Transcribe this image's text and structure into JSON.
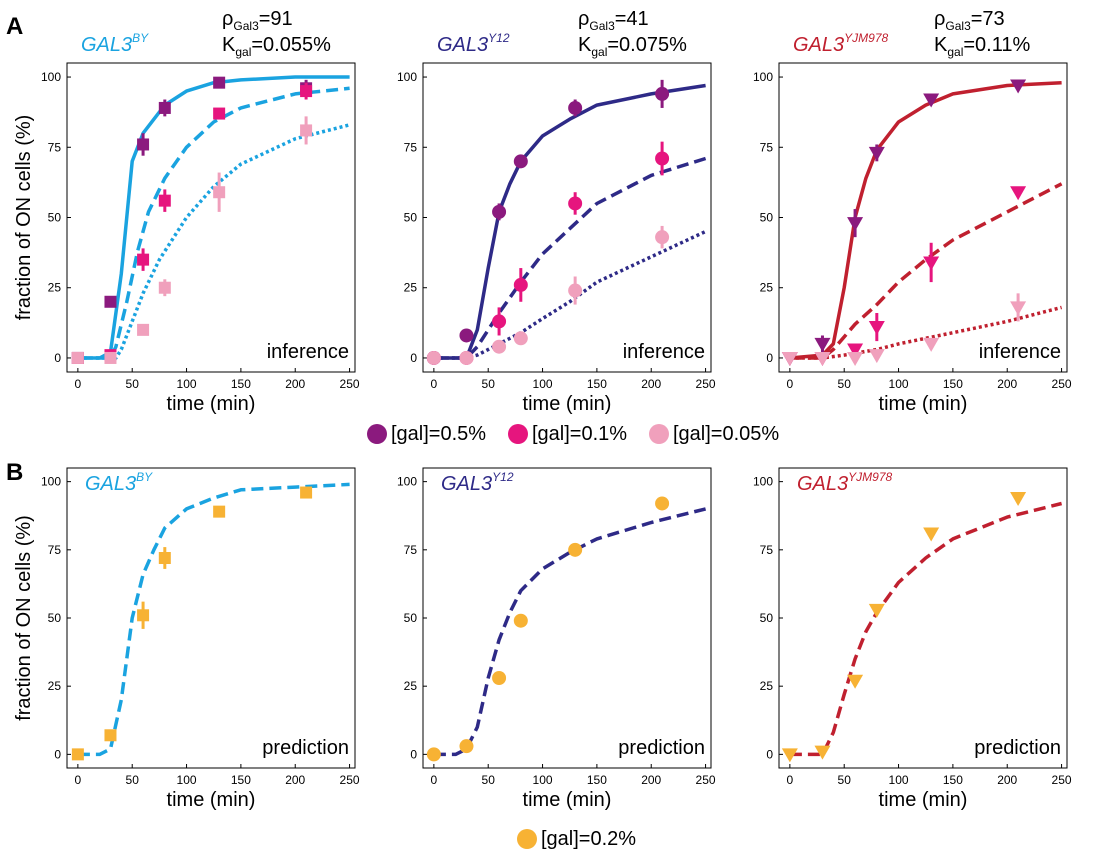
{
  "colors": {
    "by": "#1aa3e0",
    "y12": "#2e2a87",
    "yjm": "#c0202f",
    "gal05": "#8b1a7e",
    "gal01": "#e6157e",
    "gal005": "#f0a0bc",
    "gal02": "#f7b234"
  },
  "panel_a": {
    "letter": "A"
  },
  "panel_b": {
    "letter": "B"
  },
  "legend_a": [
    {
      "label": "[gal]=0.5%",
      "color_key": "gal05"
    },
    {
      "label": "[gal]=0.1%",
      "color_key": "gal01"
    },
    {
      "label": "[gal]=0.05%",
      "color_key": "gal005"
    }
  ],
  "legend_b": [
    {
      "label": "[gal]=0.2%",
      "color_key": "gal02"
    }
  ],
  "chart_data": [
    {
      "id": "a1",
      "type": "line",
      "panel": "A",
      "strain": "GAL3",
      "strain_sup": "BY",
      "color_key": "by",
      "marker": "square",
      "rho_label": "ρ",
      "rho_sub": "Gal3",
      "rho_value": "=91",
      "k_label": "K",
      "k_sub": "gal",
      "k_value": "=0.055%",
      "corner": "inference",
      "ylabel": "fraction of ON cells (%)",
      "xlabel": "time (min)",
      "xlim": [
        -10,
        255
      ],
      "ylim": [
        -5,
        105
      ],
      "xticks": [
        0,
        50,
        100,
        150,
        200,
        250
      ],
      "yticks": [
        0,
        25,
        50,
        75,
        100
      ],
      "curves": [
        {
          "name": "[gal]=0.5%",
          "style": "solid",
          "x": [
            0,
            20,
            30,
            40,
            50,
            60,
            70,
            80,
            100,
            125,
            150,
            200,
            250
          ],
          "y": [
            0,
            0,
            2,
            30,
            70,
            80,
            85,
            90,
            95,
            98,
            99,
            100,
            100
          ]
        },
        {
          "name": "[gal]=0.1%",
          "style": "dashed",
          "x": [
            0,
            30,
            35,
            45,
            55,
            65,
            80,
            100,
            125,
            150,
            200,
            250
          ],
          "y": [
            0,
            0,
            4,
            20,
            38,
            52,
            64,
            75,
            84,
            89,
            94,
            96
          ]
        },
        {
          "name": "[gal]=0.05%",
          "style": "dotted",
          "x": [
            0,
            35,
            40,
            50,
            60,
            75,
            100,
            125,
            150,
            200,
            250
          ],
          "y": [
            0,
            0,
            3,
            13,
            23,
            35,
            50,
            61,
            69,
            78,
            83
          ]
        }
      ],
      "series": [
        {
          "name": "[gal]=0.5%",
          "color_key": "gal05",
          "x": [
            0,
            30,
            60,
            80,
            130,
            210
          ],
          "y": [
            0,
            20,
            76,
            89,
            98,
            96
          ],
          "err": [
            0,
            2,
            4,
            3,
            0,
            3
          ]
        },
        {
          "name": "[gal]=0.1%",
          "color_key": "gal01",
          "x": [
            0,
            30,
            60,
            80,
            130,
            210
          ],
          "y": [
            0,
            1,
            35,
            56,
            87,
            95
          ],
          "err": [
            0,
            0,
            4,
            4,
            0,
            3
          ]
        },
        {
          "name": "[gal]=0.05%",
          "color_key": "gal005",
          "x": [
            0,
            30,
            60,
            80,
            130,
            210
          ],
          "y": [
            0,
            0,
            10,
            25,
            59,
            81
          ],
          "err": [
            0,
            0,
            2,
            3,
            7,
            5
          ]
        }
      ]
    },
    {
      "id": "a2",
      "type": "line",
      "panel": "A",
      "strain": "GAL3",
      "strain_sup": "Y12",
      "color_key": "y12",
      "marker": "circle",
      "rho_label": "ρ",
      "rho_sub": "Gal3",
      "rho_value": "=41",
      "k_label": "K",
      "k_sub": "gal",
      "k_value": "=0.075%",
      "corner": "inference",
      "ylabel": "",
      "xlabel": "time (min)",
      "xlim": [
        -10,
        255
      ],
      "ylim": [
        -5,
        105
      ],
      "xticks": [
        0,
        50,
        100,
        150,
        200,
        250
      ],
      "yticks": [
        0,
        25,
        50,
        75,
        100
      ],
      "curves": [
        {
          "name": "[gal]=0.5%",
          "style": "solid",
          "x": [
            0,
            30,
            40,
            50,
            60,
            70,
            80,
            100,
            125,
            150,
            200,
            250
          ],
          "y": [
            0,
            0,
            10,
            32,
            52,
            62,
            70,
            79,
            85,
            90,
            94,
            97
          ]
        },
        {
          "name": "[gal]=0.1%",
          "style": "dashed",
          "x": [
            0,
            30,
            40,
            50,
            60,
            80,
            100,
            125,
            150,
            200,
            250
          ],
          "y": [
            0,
            0,
            4,
            10,
            16,
            27,
            37,
            46,
            55,
            65,
            71
          ]
        },
        {
          "name": "[gal]=0.05%",
          "style": "dotted",
          "x": [
            0,
            30,
            40,
            60,
            80,
            100,
            125,
            150,
            200,
            250
          ],
          "y": [
            0,
            0,
            1,
            5,
            9,
            14,
            20,
            27,
            36,
            45
          ]
        }
      ],
      "series": [
        {
          "name": "[gal]=0.5%",
          "color_key": "gal05",
          "x": [
            0,
            30,
            60,
            80,
            130,
            210
          ],
          "y": [
            0,
            8,
            52,
            70,
            89,
            94
          ],
          "err": [
            0,
            0,
            3,
            2,
            3,
            5
          ]
        },
        {
          "name": "[gal]=0.1%",
          "color_key": "gal01",
          "x": [
            0,
            30,
            60,
            80,
            130,
            210
          ],
          "y": [
            0,
            0,
            13,
            26,
            55,
            71
          ],
          "err": [
            0,
            0,
            5,
            6,
            4,
            6
          ]
        },
        {
          "name": "[gal]=0.05%",
          "color_key": "gal005",
          "x": [
            0,
            30,
            60,
            80,
            130,
            210
          ],
          "y": [
            0,
            0,
            4,
            7,
            24,
            43
          ],
          "err": [
            0,
            0,
            0,
            1,
            5,
            4
          ]
        }
      ]
    },
    {
      "id": "a3",
      "type": "line",
      "panel": "A",
      "strain": "GAL3",
      "strain_sup": "YJM978",
      "color_key": "yjm",
      "marker": "triangle",
      "rho_label": "ρ",
      "rho_sub": "Gal3",
      "rho_value": "=73",
      "k_label": "K",
      "k_sub": "gal",
      "k_value": "=0.11%",
      "corner": "inference",
      "ylabel": "",
      "xlabel": "time (min)",
      "xlim": [
        -10,
        255
      ],
      "ylim": [
        -5,
        105
      ],
      "xticks": [
        0,
        50,
        100,
        150,
        200,
        250
      ],
      "yticks": [
        0,
        25,
        50,
        75,
        100
      ],
      "curves": [
        {
          "name": "[gal]=0.5%",
          "style": "solid",
          "x": [
            0,
            30,
            40,
            50,
            60,
            70,
            80,
            100,
            125,
            150,
            200,
            250
          ],
          "y": [
            0,
            1,
            5,
            25,
            50,
            64,
            74,
            84,
            90,
            94,
            97,
            98
          ]
        },
        {
          "name": "[gal]=0.1%",
          "style": "dashed",
          "x": [
            0,
            30,
            40,
            60,
            80,
            100,
            125,
            150,
            200,
            250
          ],
          "y": [
            0,
            0,
            3,
            12,
            19,
            27,
            35,
            42,
            52,
            62
          ]
        },
        {
          "name": "[gal]=0.05%",
          "style": "dotted",
          "x": [
            0,
            30,
            50,
            80,
            100,
            125,
            150,
            200,
            250
          ],
          "y": [
            0,
            0,
            1,
            3,
            5,
            7,
            9,
            13,
            18
          ]
        }
      ],
      "series": [
        {
          "name": "[gal]=0.5%",
          "color_key": "gal05",
          "x": [
            0,
            30,
            60,
            80,
            130,
            210
          ],
          "y": [
            0,
            5,
            48,
            73,
            92,
            97
          ],
          "err": [
            0,
            3,
            5,
            3,
            0,
            0
          ]
        },
        {
          "name": "[gal]=0.1%",
          "color_key": "gal01",
          "x": [
            0,
            30,
            60,
            80,
            130,
            210
          ],
          "y": [
            0,
            0,
            3,
            11,
            34,
            59
          ],
          "err": [
            0,
            0,
            0,
            5,
            7,
            0
          ]
        },
        {
          "name": "[gal]=0.05%",
          "color_key": "gal005",
          "x": [
            0,
            30,
            60,
            80,
            130,
            210
          ],
          "y": [
            0,
            0,
            0,
            1,
            5,
            18
          ],
          "err": [
            0,
            0,
            0,
            0,
            0,
            5
          ]
        }
      ]
    },
    {
      "id": "b1",
      "type": "line",
      "panel": "B",
      "strain": "GAL3",
      "strain_sup": "BY",
      "color_key": "by",
      "marker": "square",
      "corner": "prediction",
      "ylabel": "fraction of ON cells (%)",
      "xlabel": "time (min)",
      "xlim": [
        -10,
        255
      ],
      "ylim": [
        -5,
        105
      ],
      "xticks": [
        0,
        50,
        100,
        150,
        200,
        250
      ],
      "yticks": [
        0,
        25,
        50,
        75,
        100
      ],
      "curves": [
        {
          "name": "[gal]=0.2%",
          "style": "dashed",
          "x": [
            0,
            20,
            30,
            40,
            50,
            60,
            70,
            80,
            100,
            125,
            150,
            200,
            250
          ],
          "y": [
            0,
            0,
            2,
            20,
            50,
            66,
            75,
            83,
            90,
            94,
            97,
            98,
            99
          ]
        }
      ],
      "series": [
        {
          "name": "[gal]=0.2%",
          "color_key": "gal02",
          "x": [
            0,
            30,
            60,
            80,
            130,
            210
          ],
          "y": [
            0,
            7,
            51,
            72,
            89,
            96
          ],
          "err": [
            0,
            0,
            5,
            4,
            2,
            0
          ]
        }
      ]
    },
    {
      "id": "b2",
      "type": "line",
      "panel": "B",
      "strain": "GAL3",
      "strain_sup": "Y12",
      "color_key": "y12",
      "marker": "circle",
      "corner": "prediction",
      "ylabel": "",
      "xlabel": "time (min)",
      "xlim": [
        -10,
        255
      ],
      "ylim": [
        -5,
        105
      ],
      "xticks": [
        0,
        50,
        100,
        150,
        200,
        250
      ],
      "yticks": [
        0,
        25,
        50,
        75,
        100
      ],
      "curves": [
        {
          "name": "[gal]=0.2%",
          "style": "dashed",
          "x": [
            0,
            20,
            30,
            40,
            50,
            60,
            70,
            80,
            100,
            125,
            150,
            200,
            250
          ],
          "y": [
            0,
            0,
            2,
            10,
            28,
            42,
            52,
            60,
            68,
            74,
            79,
            85,
            90
          ]
        }
      ],
      "series": [
        {
          "name": "[gal]=0.2%",
          "color_key": "gal02",
          "x": [
            0,
            30,
            60,
            80,
            130,
            210
          ],
          "y": [
            0,
            3,
            28,
            49,
            75,
            92
          ],
          "err": [
            0,
            0,
            0,
            0,
            0,
            0
          ]
        }
      ]
    },
    {
      "id": "b3",
      "type": "line",
      "panel": "B",
      "strain": "GAL3",
      "strain_sup": "YJM978",
      "color_key": "yjm",
      "marker": "triangle",
      "corner": "prediction",
      "ylabel": "",
      "xlabel": "time (min)",
      "xlim": [
        -10,
        255
      ],
      "ylim": [
        -5,
        105
      ],
      "xticks": [
        0,
        50,
        100,
        150,
        200,
        250
      ],
      "yticks": [
        0,
        25,
        50,
        75,
        100
      ],
      "curves": [
        {
          "name": "[gal]=0.2%",
          "style": "dashed",
          "x": [
            0,
            30,
            40,
            50,
            60,
            70,
            80,
            100,
            125,
            150,
            200,
            250
          ],
          "y": [
            0,
            0,
            8,
            22,
            35,
            45,
            52,
            63,
            72,
            79,
            87,
            92
          ]
        }
      ],
      "series": [
        {
          "name": "[gal]=0.2%",
          "color_key": "gal02",
          "x": [
            0,
            30,
            60,
            80,
            130,
            210
          ],
          "y": [
            0,
            1,
            27,
            53,
            81,
            94
          ],
          "err": [
            0,
            0,
            0,
            0,
            0,
            0
          ]
        }
      ]
    }
  ]
}
